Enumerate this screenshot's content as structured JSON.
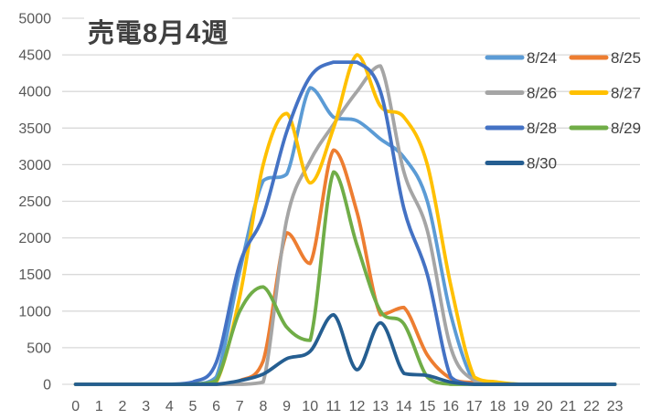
{
  "chart_data": {
    "type": "line",
    "title": "売電8月4週",
    "xlabel": "",
    "ylabel": "",
    "x": [
      0,
      1,
      2,
      3,
      4,
      5,
      6,
      7,
      8,
      9,
      10,
      11,
      12,
      13,
      14,
      15,
      16,
      17,
      18,
      19,
      20,
      21,
      22,
      23
    ],
    "x_tick_labels": [
      "0",
      "1",
      "2",
      "3",
      "4",
      "5",
      "6",
      "7",
      "8",
      "9",
      "10",
      "11",
      "12",
      "13",
      "14",
      "15",
      "16",
      "17",
      "18",
      "19",
      "20",
      "21",
      "22",
      "23"
    ],
    "y_ticks": [
      0,
      500,
      1000,
      1500,
      2000,
      2500,
      3000,
      3500,
      4000,
      4500,
      5000
    ],
    "ylim": [
      0,
      5000
    ],
    "grid": "horizontal",
    "line_smoothing": true,
    "legend_position": "top-right-two-columns",
    "series": [
      {
        "name": "8/24",
        "color": "#5B9BD5",
        "values": [
          0,
          0,
          0,
          0,
          0,
          0,
          100,
          1550,
          2780,
          2870,
          4050,
          3650,
          3600,
          3350,
          3100,
          2500,
          950,
          30,
          0,
          0,
          0,
          0,
          0,
          0
        ]
      },
      {
        "name": "8/25",
        "color": "#ED7D31",
        "values": [
          0,
          0,
          0,
          0,
          0,
          0,
          0,
          50,
          320,
          2070,
          1650,
          3200,
          2350,
          950,
          1050,
          400,
          80,
          20,
          0,
          0,
          0,
          0,
          0,
          0
        ]
      },
      {
        "name": "8/26",
        "color": "#A5A5A5",
        "values": [
          0,
          0,
          0,
          0,
          0,
          0,
          0,
          0,
          30,
          2250,
          3050,
          3550,
          4000,
          4350,
          2900,
          2100,
          500,
          50,
          20,
          0,
          0,
          0,
          0,
          0
        ]
      },
      {
        "name": "8/27",
        "color": "#FFC000",
        "values": [
          0,
          0,
          0,
          0,
          0,
          0,
          30,
          1200,
          3000,
          3700,
          2750,
          3500,
          4500,
          3800,
          3650,
          3000,
          1350,
          100,
          30,
          0,
          0,
          0,
          0,
          0
        ]
      },
      {
        "name": "8/28",
        "color": "#4472C4",
        "values": [
          0,
          0,
          0,
          0,
          0,
          30,
          300,
          1650,
          2300,
          3450,
          4200,
          4400,
          4400,
          4000,
          2400,
          1500,
          100,
          0,
          0,
          0,
          0,
          0,
          0,
          0
        ]
      },
      {
        "name": "8/29",
        "color": "#70AD47",
        "values": [
          0,
          0,
          0,
          0,
          0,
          0,
          50,
          1000,
          1330,
          780,
          600,
          2900,
          1900,
          1000,
          825,
          100,
          0,
          0,
          0,
          0,
          0,
          0,
          0,
          0
        ]
      },
      {
        "name": "8/30",
        "color": "#255E91",
        "values": [
          0,
          0,
          0,
          0,
          0,
          0,
          0,
          50,
          140,
          350,
          450,
          950,
          200,
          840,
          150,
          120,
          30,
          0,
          0,
          0,
          0,
          0,
          0,
          0
        ]
      }
    ]
  },
  "colors": {
    "background": "#FFFFFF",
    "title_text": "#404040",
    "axis_label_text": "#595959",
    "legend_text": "#404040",
    "gridline": "#D9D9D9"
  }
}
